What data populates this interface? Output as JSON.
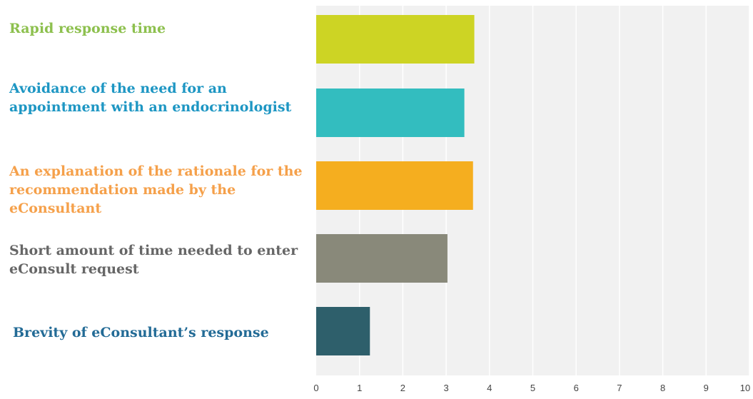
{
  "chart_data": {
    "type": "bar",
    "orientation": "horizontal",
    "categories": [
      "Rapid response time",
      "Avoidance of the need for an\nappointment with an endocrinologist",
      "An explanation of the rationale for the\nrecommendation made by the\neConsultant",
      "Short amount of time needed to enter\neConsult request",
      "Brevity of eConsultant’s response"
    ],
    "values": [
      3.65,
      3.42,
      3.62,
      3.03,
      1.24
    ],
    "colors": [
      "#cdd424",
      "#33bdbf",
      "#f5ae1f",
      "#89897a",
      "#2e5f6b"
    ],
    "label_colors": [
      "#8dc04e",
      "#1d96c3",
      "#f5a04a",
      "#666666",
      "#236b96"
    ],
    "x_ticks": [
      "0",
      "1",
      "2",
      "3",
      "4",
      "5",
      "6",
      "7",
      "8",
      "9",
      "10"
    ],
    "xlim": [
      0,
      10
    ],
    "title": "",
    "xlabel": "",
    "ylabel": "",
    "grid": true,
    "plot_background": "#f1f1f1",
    "grid_color": "#ffffff"
  }
}
